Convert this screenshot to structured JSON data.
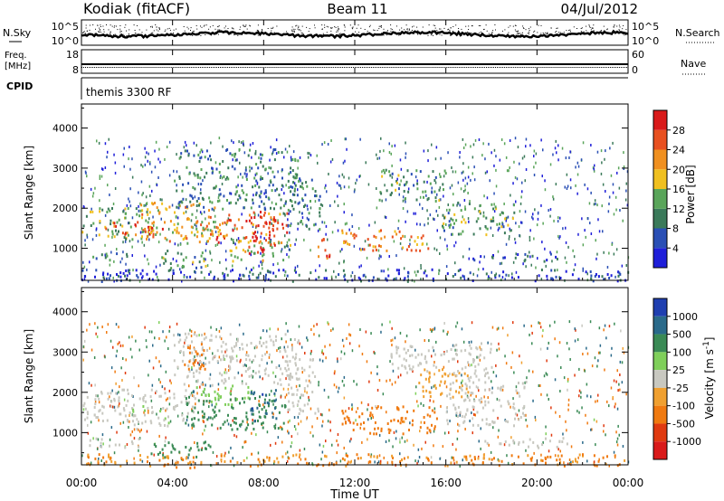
{
  "header": {
    "radar": "Kodiak (fitACF)",
    "beam": "Beam 11",
    "date": "04/Jul/2012"
  },
  "strips": {
    "nsky_label": "N.Sky",
    "nsky_ticks": [
      "10^5",
      "10^0"
    ],
    "nsearch_label": "N.Search",
    "freq_label_1": "Freq.",
    "freq_label_2": "[MHz]",
    "freq_ticks": [
      "18",
      "8"
    ],
    "nave_label": "Nave",
    "nave_ticks": [
      "60",
      "0"
    ],
    "cpid_label": "CPID",
    "cpid_value": "themis 3300 RF"
  },
  "xaxis": {
    "ticks": [
      "00:00",
      "04:00",
      "08:00",
      "12:00",
      "16:00",
      "20:00",
      "00:00"
    ],
    "label": "Time UT"
  },
  "colors": {
    "power": [
      "#1f1fd9",
      "#2a4fb5",
      "#3b7a5a",
      "#5aa55a",
      "#f0c020",
      "#f09020",
      "#e85020",
      "#d91a1a"
    ],
    "velocity": [
      "#1f3fb0",
      "#2a6a8a",
      "#3a8a55",
      "#7fcf5a",
      "#c8c8c0",
      "#f0a030",
      "#f07a10",
      "#e03a10",
      "#d91a1a"
    ]
  },
  "chart_data": [
    {
      "type": "heatmap",
      "name": "power",
      "x_range_hours": [
        0,
        24
      ],
      "ylabel": "Slant Range [km]",
      "ylim": [
        200,
        4600
      ],
      "yticks": [
        1000,
        2000,
        3000,
        4000
      ],
      "colorbar_label": "Power [dB]",
      "colorbar_ticks": [
        4,
        8,
        12,
        16,
        20,
        24,
        28
      ],
      "colorbar_range": [
        0,
        32
      ],
      "regions": [
        {
          "t0": 0.0,
          "t1": 3.0,
          "r0": 1250,
          "r1": 2050,
          "level": 0.45
        },
        {
          "t0": 0.3,
          "t1": 2.2,
          "r0": 700,
          "r1": 900,
          "level": 0.3
        },
        {
          "t0": 1.0,
          "t1": 3.6,
          "r0": 1350,
          "r1": 1700,
          "level": 0.85
        },
        {
          "t0": 2.5,
          "t1": 6.0,
          "r0": 1150,
          "r1": 2200,
          "level": 0.6
        },
        {
          "t0": 3.5,
          "t1": 5.5,
          "r0": 400,
          "r1": 1000,
          "level": 0.35
        },
        {
          "t0": 4.0,
          "t1": 9.5,
          "r0": 2000,
          "r1": 3500,
          "level": 0.3
        },
        {
          "t0": 5.0,
          "t1": 9.0,
          "r0": 1150,
          "r1": 1950,
          "level": 0.75
        },
        {
          "t0": 6.5,
          "t1": 9.2,
          "r0": 700,
          "r1": 1250,
          "level": 0.5
        },
        {
          "t0": 7.3,
          "t1": 8.6,
          "r0": 900,
          "r1": 2000,
          "level": 0.95
        },
        {
          "t0": 9.0,
          "t1": 10.5,
          "r0": 1500,
          "r1": 2900,
          "level": 0.3
        },
        {
          "t0": 10.2,
          "t1": 10.9,
          "r0": 750,
          "r1": 1300,
          "level": 0.8
        },
        {
          "t0": 11.4,
          "t1": 15.2,
          "r0": 950,
          "r1": 1500,
          "level": 0.7
        },
        {
          "t0": 13.0,
          "t1": 16.0,
          "r0": 2200,
          "r1": 3000,
          "level": 0.35
        },
        {
          "t0": 15.8,
          "t1": 19.0,
          "r0": 1350,
          "r1": 2200,
          "level": 0.4
        },
        {
          "t0": 17.0,
          "t1": 21.0,
          "r0": 700,
          "r1": 900,
          "level": 0.2
        },
        {
          "t0": 0.0,
          "t1": 24.0,
          "r0": 200,
          "r1": 500,
          "level": 0.15
        }
      ]
    },
    {
      "type": "heatmap",
      "name": "velocity",
      "x_range_hours": [
        0,
        24
      ],
      "ylabel": "Slant Range [km]",
      "ylim": [
        200,
        4600
      ],
      "yticks": [
        1000,
        2000,
        3000,
        4000
      ],
      "colorbar_label": "Velocity [m s^-1]",
      "colorbar_ticks": [
        1000,
        500,
        100,
        25,
        -25,
        -100,
        -500,
        -1000
      ],
      "regions": [
        {
          "t0": 0.0,
          "t1": 5.0,
          "r0": 1300,
          "r1": 2100,
          "value": 0
        },
        {
          "t0": 0.3,
          "t1": 2.5,
          "r0": 650,
          "r1": 900,
          "value": 0
        },
        {
          "t0": 2.2,
          "t1": 3.8,
          "r0": 1100,
          "r1": 1700,
          "value": 15
        },
        {
          "t0": 3.0,
          "t1": 6.0,
          "r0": 400,
          "r1": 800,
          "value": 300
        },
        {
          "t0": 3.6,
          "t1": 5.0,
          "r0": 150,
          "r1": 400,
          "value": -150
        },
        {
          "t0": 4.5,
          "t1": 9.0,
          "r0": 1100,
          "r1": 2000,
          "value": 250
        },
        {
          "t0": 5.0,
          "t1": 7.5,
          "r0": 1700,
          "r1": 2200,
          "value": 50
        },
        {
          "t0": 7.4,
          "t1": 8.6,
          "r0": 1300,
          "r1": 2100,
          "value": 800
        },
        {
          "t0": 4.0,
          "t1": 9.5,
          "r0": 2200,
          "r1": 3500,
          "value": 0
        },
        {
          "t0": 4.5,
          "t1": 5.5,
          "r0": 2600,
          "r1": 3400,
          "value": -150
        },
        {
          "t0": 9.0,
          "t1": 10.5,
          "r0": 1500,
          "r1": 2900,
          "value": 0
        },
        {
          "t0": 11.4,
          "t1": 15.6,
          "r0": 1000,
          "r1": 1700,
          "value": -250
        },
        {
          "t0": 14.5,
          "t1": 17.0,
          "r0": 1900,
          "r1": 2600,
          "value": -50
        },
        {
          "t0": 13.5,
          "t1": 16.5,
          "r0": 2500,
          "r1": 3200,
          "value": 0
        },
        {
          "t0": 16.0,
          "t1": 19.5,
          "r0": 1200,
          "r1": 2300,
          "value": 0
        },
        {
          "t0": 16.2,
          "t1": 18.0,
          "r0": 2300,
          "r1": 3300,
          "value": 0
        },
        {
          "t0": 17.5,
          "t1": 21.5,
          "r0": 650,
          "r1": 900,
          "value": 0
        },
        {
          "t0": 0.0,
          "t1": 24.0,
          "r0": 200,
          "r1": 500,
          "value": -100
        }
      ]
    }
  ]
}
